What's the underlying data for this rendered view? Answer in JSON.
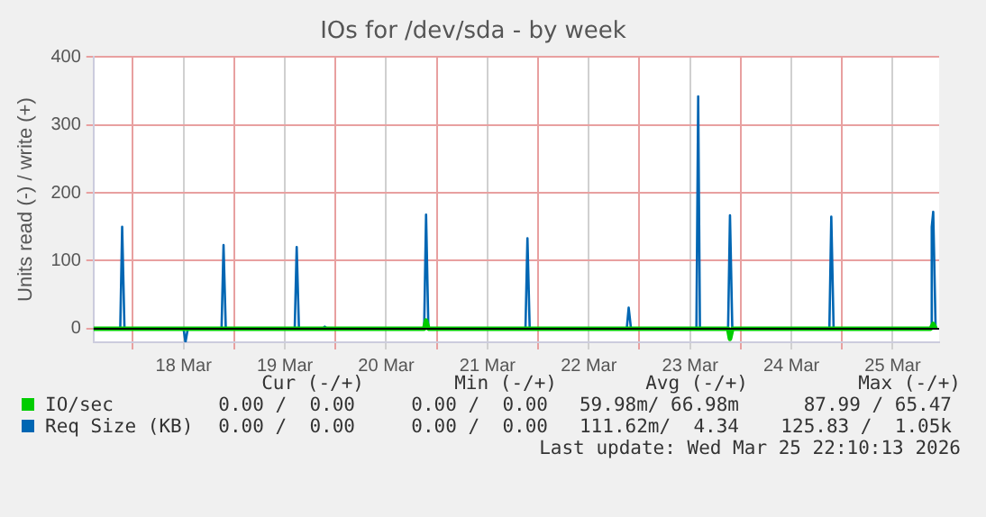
{
  "chart_data": {
    "type": "line",
    "title": "IOs for /dev/sda - by week",
    "ylabel": "Units read (-) / write (+)",
    "xlim": [
      "2026-03-17T14:40",
      "2026-03-25T23:00"
    ],
    "xticks": [
      {
        "value": "2026-03-18T00:00",
        "label": null
      },
      {
        "value": "2026-03-18T12:00",
        "label": "18 Mar"
      },
      {
        "value": "2026-03-19T00:00",
        "label": null
      },
      {
        "value": "2026-03-19T12:00",
        "label": "19 Mar"
      },
      {
        "value": "2026-03-20T00:00",
        "label": null
      },
      {
        "value": "2026-03-20T12:00",
        "label": "20 Mar"
      },
      {
        "value": "2026-03-21T00:00",
        "label": null
      },
      {
        "value": "2026-03-21T12:00",
        "label": "21 Mar"
      },
      {
        "value": "2026-03-22T00:00",
        "label": null
      },
      {
        "value": "2026-03-22T12:00",
        "label": "22 Mar"
      },
      {
        "value": "2026-03-23T00:00",
        "label": null
      },
      {
        "value": "2026-03-23T12:00",
        "label": "23 Mar"
      },
      {
        "value": "2026-03-24T00:00",
        "label": null
      },
      {
        "value": "2026-03-24T12:00",
        "label": "24 Mar"
      },
      {
        "value": "2026-03-25T00:00",
        "label": null
      },
      {
        "value": "2026-03-25T12:00",
        "label": "25 Mar"
      }
    ],
    "ylim": [
      -20,
      400
    ],
    "yticks": [
      0,
      100,
      200,
      300,
      400
    ],
    "grid": true,
    "legend": "bottom left",
    "marker": "none",
    "line_style": "solid",
    "series": [
      {
        "name": "IO/sec",
        "color": "#00cc00",
        "x": [
          "2026-03-17T14:40",
          "2026-03-20T21:00",
          "2026-03-20T21:27",
          "2026-03-20T22:00",
          "2026-03-23T21:00",
          "2026-03-23T21:27",
          "2026-03-23T22:00",
          "2026-03-25T21:00",
          "2026-03-25T21:36",
          "2026-03-25T22:10"
        ],
        "values": [
          0,
          0,
          12,
          0,
          0,
          -15,
          0,
          0,
          7,
          0
        ]
      },
      {
        "name": "Req Size (KB)",
        "color": "#0066b3",
        "x": [
          "2026-03-17T14:40",
          "2026-03-17T21:00",
          "2026-03-17T21:27",
          "2026-03-17T22:00",
          "2026-03-18T12:00",
          "2026-03-18T12:27",
          "2026-03-18T13:00",
          "2026-03-18T21:00",
          "2026-03-18T21:28",
          "2026-03-18T22:00",
          "2026-03-19T14:20",
          "2026-03-19T14:48",
          "2026-03-19T15:20",
          "2026-03-19T21:00",
          "2026-03-19T21:27",
          "2026-03-19T22:00",
          "2026-03-20T21:00",
          "2026-03-20T21:27",
          "2026-03-20T22:00",
          "2026-03-21T21:00",
          "2026-03-21T21:28",
          "2026-03-21T22:00",
          "2026-03-22T21:00",
          "2026-03-22T21:27",
          "2026-03-22T22:00",
          "2026-03-23T13:30",
          "2026-03-23T13:55",
          "2026-03-23T14:20",
          "2026-03-23T21:00",
          "2026-03-23T21:27",
          "2026-03-23T22:00",
          "2026-03-24T21:00",
          "2026-03-24T21:27",
          "2026-03-24T22:00",
          "2026-03-25T21:00",
          "2026-03-25T21:15",
          "2026-03-25T21:36",
          "2026-03-25T22:10"
        ],
        "values": [
          0,
          0,
          150,
          0,
          0,
          -20,
          0,
          0,
          123,
          0,
          0,
          120,
          0,
          0,
          3,
          0,
          0,
          168,
          0,
          0,
          133,
          0,
          0,
          31,
          0,
          0,
          342,
          0,
          0,
          167,
          0,
          0,
          165,
          0,
          0,
          150,
          172,
          0
        ]
      }
    ],
    "annotations": [
      "Cur (-/+)",
      "Min (-/+)",
      "Avg (-/+)",
      "Max (-/+)",
      "0.00 /  0.00",
      "0.00 /  0.00",
      "59.98m/ 66.98m",
      "87.99 / 65.47",
      "0.00 /  0.00",
      "0.00 /  0.00",
      "111.62m/  4.34",
      "125.83 /  1.05k",
      "Last update: Wed Mar 25 22:10:13 2026"
    ]
  }
}
